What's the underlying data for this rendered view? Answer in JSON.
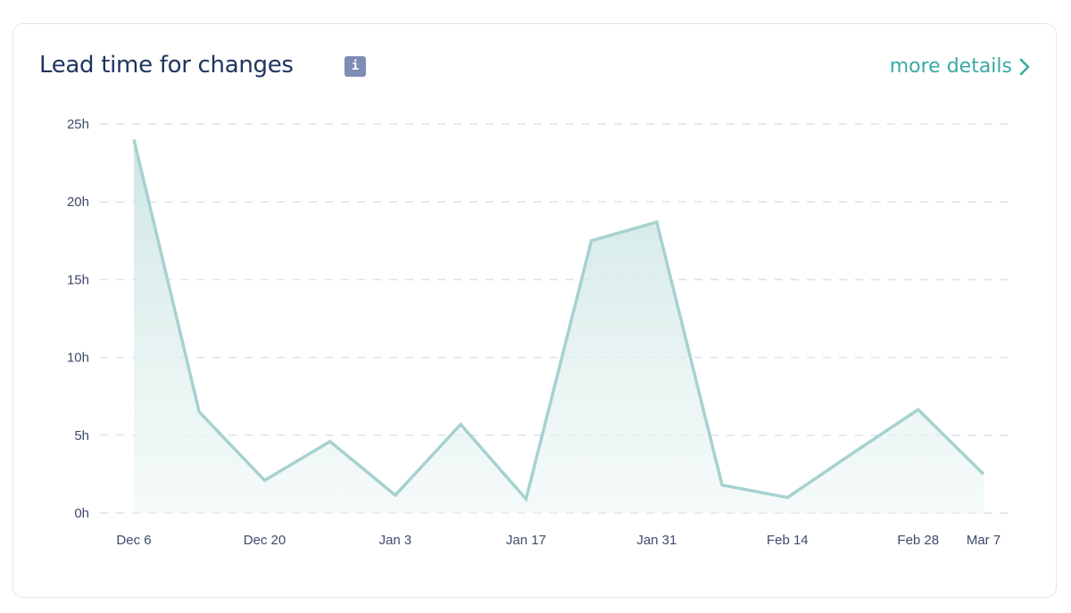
{
  "header": {
    "title": "Lead time for changes",
    "info_icon": "i",
    "more_details": "more details"
  },
  "colors": {
    "line": "#a6d2cf",
    "fill": "#d3ebe9",
    "grid": "#dde1ee",
    "accent": "#3aa9a4",
    "title": "#1f3560"
  },
  "chart_data": {
    "type": "area",
    "title": "Lead time for changes",
    "x": [
      "Dec 6",
      "Dec 13",
      "Dec 20",
      "Dec 27",
      "Jan 3",
      "Jan 10",
      "Jan 17",
      "Jan 24",
      "Jan 31",
      "Feb 7",
      "Feb 14",
      "Feb 21",
      "Feb 28",
      "Mar 7"
    ],
    "values": [
      24,
      6.5,
      2.1,
      4.6,
      1.15,
      5.7,
      0.9,
      17.5,
      18.7,
      1.8,
      1.0,
      3.85,
      6.65,
      2.5
    ],
    "x_tick_labels": [
      "Dec 6",
      "Dec 20",
      "Jan 3",
      "Jan 17",
      "Jan 31",
      "Feb 14",
      "Feb 28",
      "Mar 7"
    ],
    "y_ticks": [
      0,
      5,
      10,
      15,
      20,
      25
    ],
    "y_tick_labels": [
      "0h",
      "5h",
      "10h",
      "15h",
      "20h",
      "25h"
    ],
    "ylim": [
      0,
      25
    ],
    "unit": "h",
    "grid": true,
    "xlabel": "",
    "ylabel": ""
  }
}
